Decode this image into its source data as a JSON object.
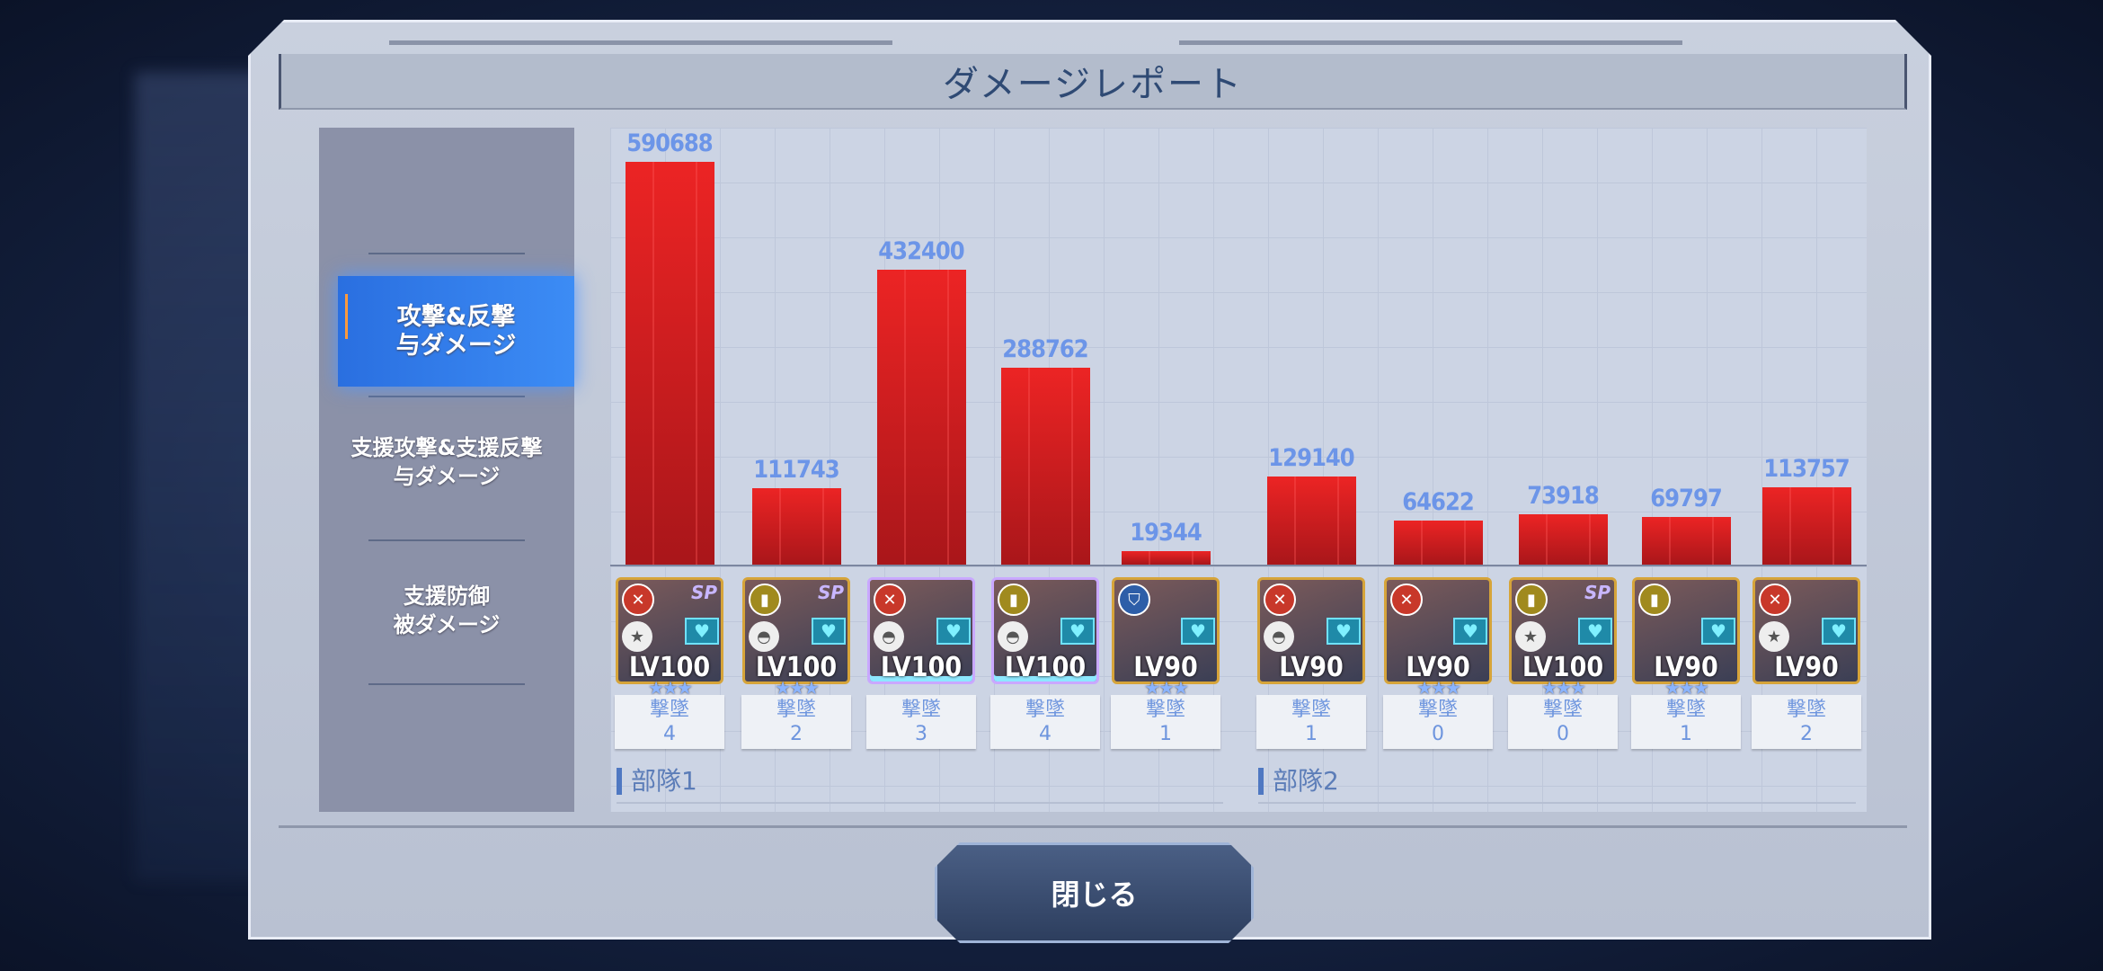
{
  "title": "ダメージレポート",
  "sidebar": {
    "items": [
      {
        "line1": "攻撃&反撃",
        "line2": "与ダメージ",
        "active": true
      },
      {
        "line1": "支援攻撃&支援反撃",
        "line2": "与ダメージ",
        "active": false
      },
      {
        "line1": "支援防御",
        "line2": "被ダメージ",
        "active": false
      }
    ]
  },
  "kill_label": "撃墜",
  "teams": [
    {
      "label": "部隊1",
      "units": [
        {
          "damage": "590688",
          "level": "LV100",
          "stars": 3,
          "kills": "4",
          "role": "sword",
          "type": "star",
          "sp": true,
          "frame": "gold"
        },
        {
          "damage": "111743",
          "level": "LV100",
          "stars": 3,
          "kills": "2",
          "role": "bullet",
          "type": "wing",
          "sp": true,
          "frame": "gold"
        },
        {
          "damage": "432400",
          "level": "LV100",
          "stars": 0,
          "kills": "3",
          "role": "sword",
          "type": "wing",
          "sp": false,
          "frame": "rainbow"
        },
        {
          "damage": "288762",
          "level": "LV100",
          "stars": 0,
          "kills": "4",
          "role": "bullet",
          "type": "wing",
          "sp": false,
          "frame": "rainbow"
        },
        {
          "damage": "19344",
          "level": "LV90",
          "stars": 3,
          "kills": "1",
          "role": "shield",
          "type": "none",
          "sp": false,
          "frame": "gold"
        }
      ]
    },
    {
      "label": "部隊2",
      "units": [
        {
          "damage": "129140",
          "level": "LV90",
          "stars": 0,
          "kills": "1",
          "role": "sword",
          "type": "wing",
          "sp": false,
          "frame": "gold"
        },
        {
          "damage": "64622",
          "level": "LV90",
          "stars": 3,
          "kills": "0",
          "role": "sword",
          "type": "none",
          "sp": false,
          "frame": "gold"
        },
        {
          "damage": "73918",
          "level": "LV100",
          "stars": 3,
          "kills": "0",
          "role": "bullet",
          "type": "star",
          "sp": true,
          "frame": "gold"
        },
        {
          "damage": "69797",
          "level": "LV90",
          "stars": 3,
          "kills": "1",
          "role": "bullet",
          "type": "none",
          "sp": false,
          "frame": "gold"
        },
        {
          "damage": "113757",
          "level": "LV90",
          "stars": 0,
          "kills": "2",
          "role": "sword",
          "type": "star",
          "sp": false,
          "frame": "gold"
        }
      ]
    }
  ],
  "chart_data": {
    "type": "bar",
    "series": [
      {
        "name": "部隊1",
        "values": [
          590688,
          111743,
          432400,
          288762,
          19344
        ]
      },
      {
        "name": "部隊2",
        "values": [
          129140,
          64622,
          73918,
          69797,
          113757
        ]
      }
    ],
    "bar_color": "#d01c1f",
    "label_color": "#6c95e8",
    "grid": true
  },
  "close_button": "閉じる",
  "colors": {
    "accent": "#2f7ae8",
    "sword": "#c8382a",
    "bullet": "#a08a1e",
    "shield": "#2d5ea8"
  }
}
